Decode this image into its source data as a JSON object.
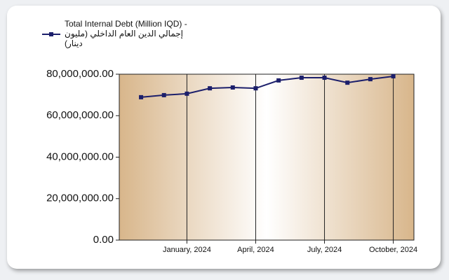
{
  "chart_data": {
    "type": "line",
    "categories": [
      null,
      null,
      "January, 2024",
      null,
      null,
      "April, 2024",
      null,
      null,
      "July, 2024",
      null,
      null,
      "October, 2024"
    ],
    "series": [
      {
        "name": "Total Internal  Debt (Million IQD) - إجمالي الدين  العام الداخلي (مليون دينار)",
        "color": "#1c1f6b",
        "values": [
          68900000,
          69900000,
          70600000,
          73200000,
          73600000,
          73200000,
          77000000,
          78300000,
          78300000,
          75900000,
          77600000,
          79000000
        ]
      }
    ],
    "ylim": [
      0,
      80000000
    ],
    "yticks": [
      {
        "value": 0,
        "label": "0.00"
      },
      {
        "value": 20000000,
        "label": "20,000,000.00"
      },
      {
        "value": 40000000,
        "label": "40,000,000.00"
      },
      {
        "value": 60000000,
        "label": "60,000,000.00"
      },
      {
        "value": 80000000,
        "label": "80,000,000.00"
      }
    ],
    "legend": "top-left"
  }
}
